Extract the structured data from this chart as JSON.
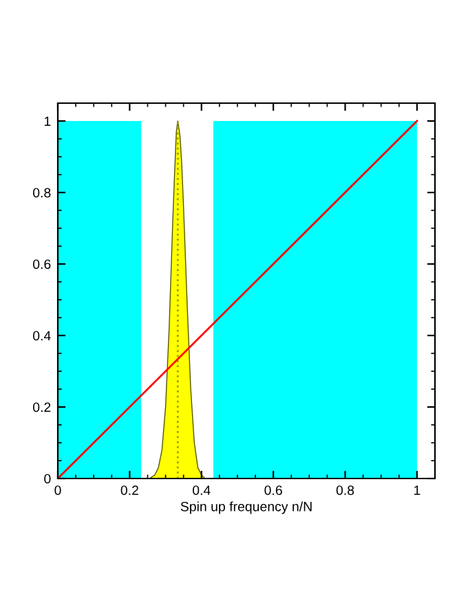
{
  "chart_data": {
    "type": "line",
    "xlabel": "Spin up frequency n/N",
    "xlim": [
      0,
      1.05
    ],
    "ylim": [
      0,
      1.05
    ],
    "xticks": [
      0,
      0.2,
      0.4,
      0.6,
      0.8,
      1
    ],
    "yticks": [
      0,
      0.2,
      0.4,
      0.6,
      0.8,
      1
    ],
    "grid": false,
    "legend": false,
    "marker": "none",
    "series": [
      {
        "type": "area",
        "color": "#00ffff",
        "x": [
          0,
          0.232
        ],
        "values": [
          1,
          1
        ]
      },
      {
        "type": "area",
        "color": "#00ffff",
        "x": [
          0.433,
          1
        ],
        "values": [
          1,
          1
        ]
      },
      {
        "type": "area",
        "color": "#ffff00",
        "x": [
          0.255,
          0.27,
          0.28,
          0.29,
          0.3,
          0.31,
          0.32,
          0.325,
          0.33,
          0.334,
          0.34,
          0.345,
          0.35,
          0.36,
          0.37,
          0.38,
          0.39,
          0.4,
          0.41
        ],
        "values": [
          0,
          0.01,
          0.03,
          0.08,
          0.2,
          0.42,
          0.72,
          0.85,
          0.97,
          1,
          0.96,
          0.88,
          0.76,
          0.49,
          0.25,
          0.1,
          0.03,
          0.01,
          0
        ]
      },
      {
        "color": "#a0a000",
        "line_style": "dotted",
        "x": [
          0.334,
          0.334
        ],
        "values": [
          0,
          1
        ]
      },
      {
        "color": "#ff0000",
        "line_style": "solid",
        "x": [
          0,
          1
        ],
        "values": [
          0,
          1
        ]
      }
    ]
  }
}
